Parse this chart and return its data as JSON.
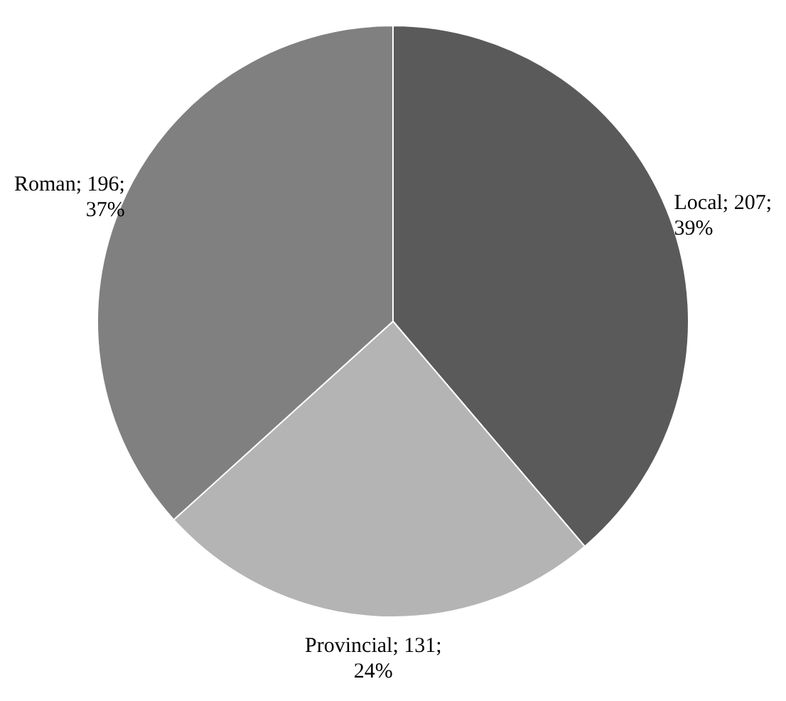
{
  "chart_data": {
    "type": "pie",
    "categories": [
      "Local",
      "Provincial",
      "Roman"
    ],
    "values": [
      207,
      131,
      196
    ],
    "colors": [
      "#5a5a5a",
      "#b4b4b4",
      "#808080"
    ],
    "value_labels": [
      "207; 39%",
      "131; 24%",
      "196; 37%"
    ],
    "legend": false
  }
}
